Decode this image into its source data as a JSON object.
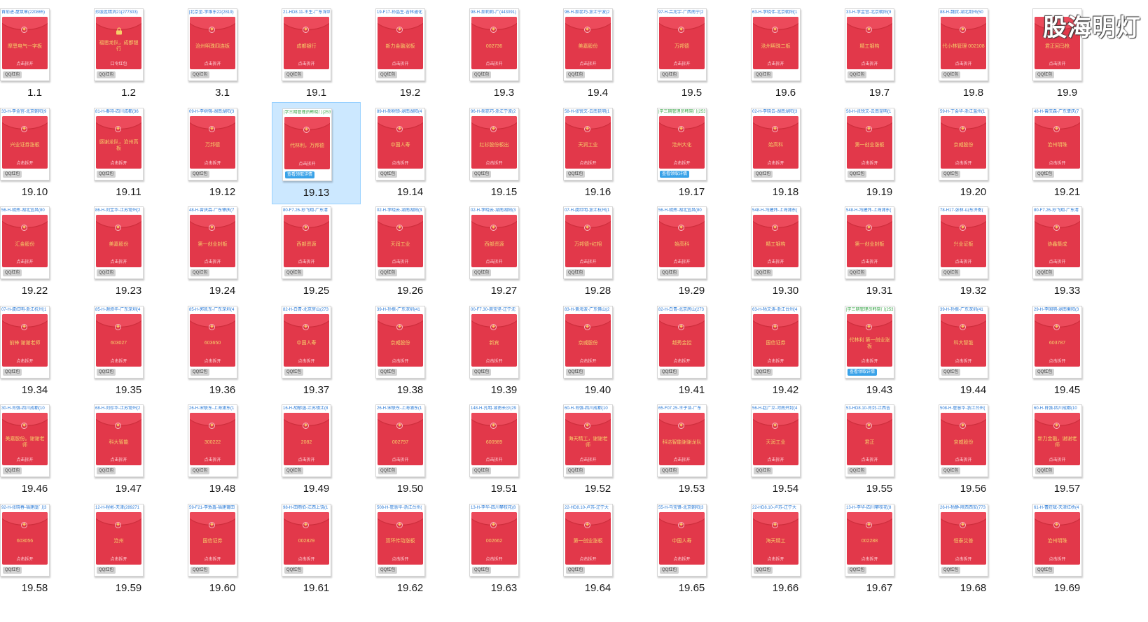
{
  "watermark": "股海明灯",
  "labels": {
    "open": "点击拆开",
    "qq": "QQ红包",
    "detail": "查看领取详情",
    "password": "口令红包"
  },
  "files": [
    {
      "name": "1.1",
      "header": "首前进-屋筑章(220865)",
      "title": "摩恩电气一字板",
      "tag": "qq"
    },
    {
      "name": "1.2",
      "header": "炒股胜精消21(277303)",
      "title": "福思龙队，成都银行",
      "tag": "qq",
      "locked": true
    },
    {
      "name": "3.1",
      "header": "|北京坐-李维东22(2819)",
      "title": "沧州明珠四连板",
      "tag": "qq"
    },
    {
      "name": "19.1",
      "header": "21-HD8.11-王生-广东深圳",
      "title": "成都银行",
      "tag": "qq"
    },
    {
      "name": "19.2",
      "header": "19-F17-孙晶生-吉林通化",
      "title": "新力金融涨板",
      "tag": "qq"
    },
    {
      "name": "19.3",
      "header": "98-H-郝莉莉-广(443091)",
      "title": "002736",
      "tag": "qq"
    },
    {
      "name": "19.4",
      "header": "96-H-郝蕊巧-浙江宁波(2",
      "title": "美嘉股份",
      "tag": "qq"
    },
    {
      "name": "19.5",
      "header": "97-H-吕兆宇-广西南宁(2",
      "title": "万邦德",
      "tag": "qq"
    },
    {
      "name": "19.6",
      "header": "63-H-李晓伟-北京朝阳(1",
      "title": "沧州明珠二板",
      "tag": "qq"
    },
    {
      "name": "19.7",
      "header": "33-H-李金宫-北京朝阳(9",
      "title": "精工钢构",
      "tag": "qq"
    },
    {
      "name": "19.8",
      "header": "88-H-魏叔-湖北荆州(50",
      "title": "代小林管理 002108",
      "tag": "qq"
    },
    {
      "name": "19.9",
      "header": "",
      "title": "君正回马枪",
      "tag": "qq"
    },
    {
      "name": "19.10",
      "header": "33-H-李金宫-北京朝阳(9",
      "title": "兴业证券涨板",
      "tag": "qq"
    },
    {
      "name": "19.11",
      "header": "81-H-秦持-四川成都(36",
      "title": "感谢龙队，沧州高板",
      "tag": "qq"
    },
    {
      "name": "19.12",
      "header": "09-H-李树强-湖南湖阳(3",
      "title": "万邦德",
      "tag": "qq"
    },
    {
      "name": "19.13",
      "header": "|学三期管理员韩晓门(253",
      "title": "代林利，万邦德",
      "tag": "detail",
      "green": true,
      "selected": true
    },
    {
      "name": "19.14",
      "header": "89-H-郝树锁-湖南湖阳(4",
      "title": "中国人寿",
      "tag": "qq"
    },
    {
      "name": "19.15",
      "header": "96-H-郝蕊巧-浙江宁波(2",
      "title": "红衫股份板出",
      "tag": "qq"
    },
    {
      "name": "19.16",
      "header": "58-H-张锐文-云南昆明(1",
      "title": "天润工业",
      "tag": "qq"
    },
    {
      "name": "19.17",
      "header": "|学三期管理员韩晓门(253",
      "title": "沧州大化",
      "tag": "detail",
      "green": true
    },
    {
      "name": "19.18",
      "header": "02-H-李晓云-湖南湖阳(3",
      "title": "始高科",
      "tag": "qq"
    },
    {
      "name": "19.19",
      "header": "58-H-张锐文-云南昆明(1",
      "title": "第一创业涨板",
      "tag": "qq"
    },
    {
      "name": "19.20",
      "header": "59-H-丁会华-浙江温州(1",
      "title": "京威股份",
      "tag": "qq"
    },
    {
      "name": "19.21",
      "header": "48-H-曾庆森-广东肇庆(7",
      "title": "沧州明珠",
      "tag": "qq"
    },
    {
      "name": "19.22",
      "header": "56-H-胡挥-湖北宜昌(80",
      "title": "汇金股份",
      "tag": "qq"
    },
    {
      "name": "19.23",
      "header": "86-H-刘宝华-江苏常州(2",
      "title": "美嘉股份",
      "tag": "qq"
    },
    {
      "name": "19.24",
      "header": "48-H-曾庆森-广东肇庆(7",
      "title": "第一创业封板",
      "tag": "qq"
    },
    {
      "name": "19.25",
      "header": "80-F7.26-孙飞翔-广东清",
      "title": "西部资源",
      "tag": "qq"
    },
    {
      "name": "19.26",
      "header": "02-H-李晓云-湖南湖阳(3",
      "title": "天润工业",
      "tag": "qq"
    },
    {
      "name": "19.27",
      "header": "02-H-李晓云-湖南湖阳(3",
      "title": "西部资源",
      "tag": "qq"
    },
    {
      "name": "19.28",
      "header": "07-H-虞红明-浙江杭州(1",
      "title": "万邦德+红相",
      "tag": "qq"
    },
    {
      "name": "19.29",
      "header": "56-H-胡挥-湖北宜昌(80",
      "title": "始高科",
      "tag": "qq"
    },
    {
      "name": "19.30",
      "header": "548-H-冯建炜-上海浦东(",
      "title": "精工钢构",
      "tag": "qq"
    },
    {
      "name": "19.31",
      "header": "548-H-冯建炜-上海浦东(",
      "title": "第一创业封板",
      "tag": "qq"
    },
    {
      "name": "19.32",
      "header": "78-H17-张林-山东济南(",
      "title": "兴业证板",
      "tag": "qq"
    },
    {
      "name": "19.33",
      "header": "80-F7.26-孙飞翔-广东清",
      "title": "协鑫集成",
      "tag": "qq"
    },
    {
      "name": "19.34",
      "header": "07-H-虞红明-浙江杭州(1",
      "title": "前锋 谢谢老师",
      "tag": "qq"
    },
    {
      "name": "19.35",
      "header": "85-H-谢烦华-广东深圳(4",
      "title": "603027",
      "tag": "qq"
    },
    {
      "name": "19.36",
      "header": "85-H-郭凯东-广东深圳(4",
      "title": "603650",
      "tag": "qq"
    },
    {
      "name": "19.37",
      "header": "82-H-白青-北京房山(273",
      "title": "中国人寿",
      "tag": "qq"
    },
    {
      "name": "19.38",
      "header": "39-H-孙振-广东深圳(41",
      "title": "京威股份",
      "tag": "qq"
    },
    {
      "name": "19.39",
      "header": "00-F7.30-周宝坚-辽宁沈",
      "title": "新宾",
      "tag": "qq"
    },
    {
      "name": "19.40",
      "header": "83-H-黄海波-广东佛山(2",
      "title": "京威股份",
      "tag": "qq"
    },
    {
      "name": "19.41",
      "header": "82-H-白青-北京房山(273",
      "title": "越秀金控",
      "tag": "qq"
    },
    {
      "name": "19.42",
      "header": "63-H-杨文涛-浙江台州(4",
      "title": "国信证券",
      "tag": "qq"
    },
    {
      "name": "19.43",
      "header": "|学三期管理员韩晓门(253",
      "title": "代林利 第一创业涨板",
      "tag": "detail",
      "green": true
    },
    {
      "name": "19.44",
      "header": "39-H-孙振-广东深圳(41",
      "title": "科大智能",
      "tag": "qq"
    },
    {
      "name": "19.45",
      "header": "29-H-李国明-湖南衡阳(3",
      "title": "603787",
      "tag": "qq"
    },
    {
      "name": "19.46",
      "header": "30-H-肖强-四川成都(10",
      "title": "美嘉股份。谢谢老师",
      "tag": "qq"
    },
    {
      "name": "19.47",
      "header": "68-H-刘珍华-江苏常州(2",
      "title": "科大智能",
      "tag": "qq"
    },
    {
      "name": "19.48",
      "header": "26-H-宋联东-上海浦东(1",
      "title": "300222",
      "tag": "qq"
    },
    {
      "name": "19.49",
      "header": "16-H-胡郁涵-江苏镇江(8",
      "title": "2082",
      "tag": "qq"
    },
    {
      "name": "19.50",
      "header": "26-H-宋联东-上海浦东(1",
      "title": "002797",
      "tag": "qq"
    },
    {
      "name": "19.51",
      "header": "148-H-孔明-湖南长沙(29",
      "title": "600989",
      "tag": "qq"
    },
    {
      "name": "19.52",
      "header": "60-H-肖强-四川成都(10",
      "title": "海天精工，谢谢老师",
      "tag": "qq"
    },
    {
      "name": "19.53",
      "header": "65-F07.25-王子浩-广东",
      "title": "科达智能谢谢龙队",
      "tag": "qq"
    },
    {
      "name": "19.54",
      "header": "56-H-赵广立-河南开封(4",
      "title": "天润工业",
      "tag": "qq"
    },
    {
      "name": "19.55",
      "header": "53-HD8.10-肖剑-江西吉",
      "title": "君正",
      "tag": "qq"
    },
    {
      "name": "19.56",
      "header": "508-H-管慧华-浙江台州(",
      "title": "京威股份",
      "tag": "qq"
    },
    {
      "name": "19.57",
      "header": "60-H-肖强-四川成都(10",
      "title": "新力金融，谢谢老师",
      "tag": "qq"
    },
    {
      "name": "19.58",
      "header": "92-H-张晓春-福建厦门(3",
      "title": "603056",
      "tag": "qq"
    },
    {
      "name": "19.59",
      "header": "12-H-程彬-天津(289271",
      "title": "沧州",
      "tag": "qq"
    },
    {
      "name": "19.60",
      "header": "59-F21-李敦鑫-福建莆田",
      "title": "国信证券",
      "tag": "qq"
    },
    {
      "name": "19.61",
      "header": "98-H-田雨伯-江西上饶(1",
      "title": "002829",
      "tag": "qq"
    },
    {
      "name": "19.62",
      "header": "508-H-管慧华-浙江台州(",
      "title": "双环传动涨板",
      "tag": "qq"
    },
    {
      "name": "19.63",
      "header": "13-H-李华-四川攀枝花(8",
      "title": "002662",
      "tag": "qq"
    },
    {
      "name": "19.64",
      "header": "22-HD8.10-卢苏-辽宁大",
      "title": "第一创业涨板",
      "tag": "qq"
    },
    {
      "name": "19.65",
      "header": "55-H-马宝锋-北京朝阳(3",
      "title": "中国人寿",
      "tag": "qq"
    },
    {
      "name": "19.66",
      "header": "22-HD8.10-卢苏-辽宁大",
      "title": "海天精工",
      "tag": "qq"
    },
    {
      "name": "19.67",
      "header": "13-H-李华-四川攀枝花(8",
      "title": "002288",
      "tag": "qq"
    },
    {
      "name": "19.68",
      "header": "26-H-杨静-陕西西安(773",
      "title": "恒泰艾普",
      "tag": "qq"
    },
    {
      "name": "19.69",
      "header": "61-H-曹莊斌-天津红桥(4",
      "title": "沧州明珠",
      "tag": "qq"
    }
  ]
}
